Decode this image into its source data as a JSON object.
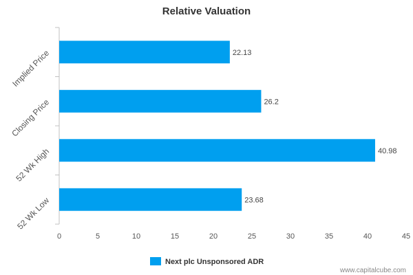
{
  "chart_data": {
    "type": "bar",
    "orientation": "horizontal",
    "title": "Relative Valuation",
    "categories": [
      "Implied Price",
      "Closing Price",
      "52 Wk High",
      "52 Wk Low"
    ],
    "series": [
      {
        "name": "Next plc Unsponsored ADR",
        "values": [
          22.13,
          26.2,
          40.98,
          23.68
        ]
      }
    ],
    "data_labels": [
      "22.13",
      "26.2",
      "40.98",
      "23.68"
    ],
    "xlim": [
      0,
      45
    ],
    "x_ticks": [
      0,
      5,
      10,
      15,
      20,
      25,
      30,
      35,
      40,
      45
    ],
    "grid": false,
    "legend_position": "bottom-center",
    "colors": {
      "bar": "#009fef",
      "axis": "#c0c0c0"
    }
  },
  "credit": "www.capitalcube.com"
}
